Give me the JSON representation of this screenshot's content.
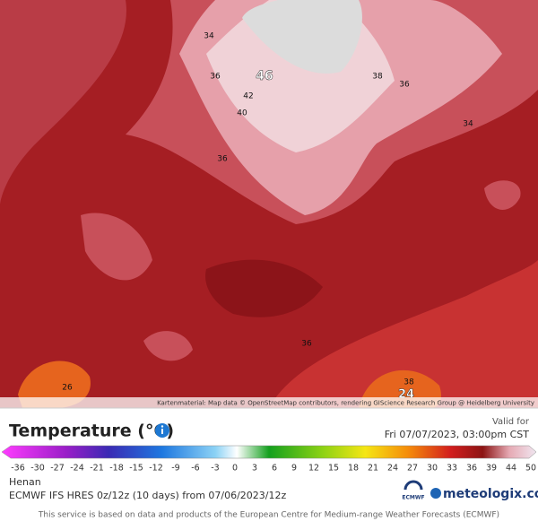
{
  "map": {
    "attribution": "Kartenmaterial: Map data © OpenStreetMap contributors, rendering GIScience Research Group @ Heidelberg University",
    "contour_labels": [
      "34",
      "36",
      "46",
      "42",
      "40",
      "38",
      "36",
      "34",
      "36",
      "38",
      "24",
      "26",
      "36"
    ]
  },
  "legend": {
    "title": "Temperature (°C)",
    "valid_label": "Valid for",
    "valid_time": "Fri 07/07/2023, 03:00pm CST",
    "ticks": [
      "-36",
      "-30",
      "-27",
      "-24",
      "-21",
      "-18",
      "-15",
      "-12",
      "-9",
      "-6",
      "-3",
      "0",
      "3",
      "6",
      "9",
      "12",
      "15",
      "18",
      "21",
      "24",
      "27",
      "30",
      "33",
      "36",
      "39",
      "44",
      "50"
    ]
  },
  "footer": {
    "region": "Henan",
    "model": "ECMWF IFS HRES 0z/12z (10 days) from 07/06/2023/12z",
    "ecmwf": "ECMWF",
    "brand": "meteologix.com",
    "notice": "This service is based on data and products of the European Centre for Medium-range Weather Forecasts (ECMWF)"
  }
}
